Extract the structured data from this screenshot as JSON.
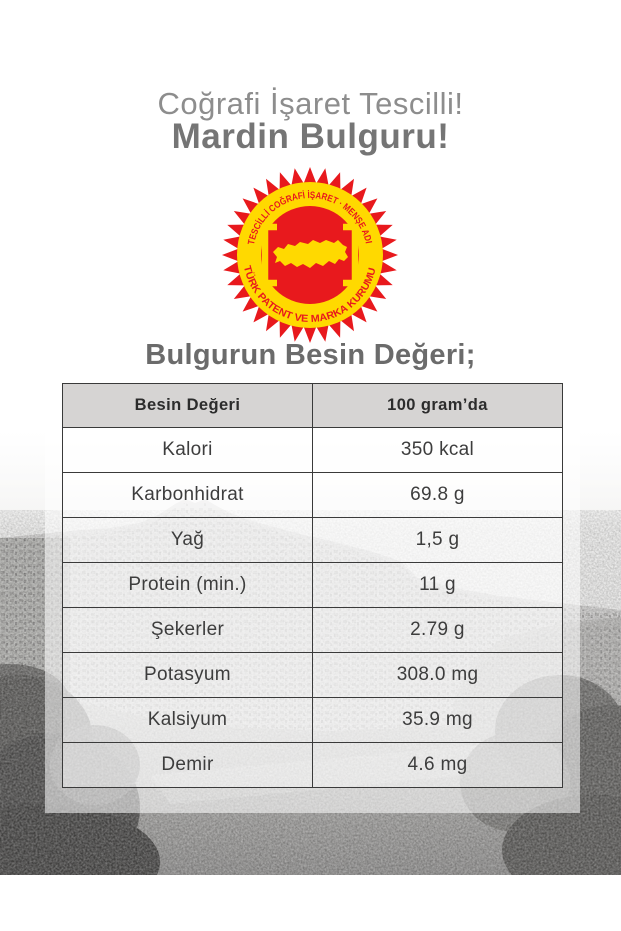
{
  "title": {
    "line1": "Coğrafi İşaret Tescilli!",
    "line2": "Mardin Bulguru!"
  },
  "seal": {
    "arc_top": "TESCİLLİ COĞRAFİ İŞARET · MENŞE ADI",
    "arc_bottom": "TÜRK PATENT VE MARKA KURUMU",
    "colors": {
      "red": "#e8191d",
      "yellow": "#ffd900"
    }
  },
  "heading": "Bulgurun Besin Değeri;",
  "table": {
    "headers": [
      "Besin Değeri",
      "100 gram’da"
    ],
    "rows": [
      {
        "label": "Kalori",
        "value": "350 kcal"
      },
      {
        "label": "Karbonhidrat",
        "value": "69.8 g"
      },
      {
        "label": "Yağ",
        "value": "1,5 g"
      },
      {
        "label": "Protein (min.)",
        "value": "11 g"
      },
      {
        "label": "Şekerler",
        "value": "2.79 g"
      },
      {
        "label": "Potasyum",
        "value": "308.0 mg"
      },
      {
        "label": "Kalsiyum",
        "value": "35.9 mg"
      },
      {
        "label": "Demir",
        "value": "4.6 mg"
      }
    ]
  }
}
